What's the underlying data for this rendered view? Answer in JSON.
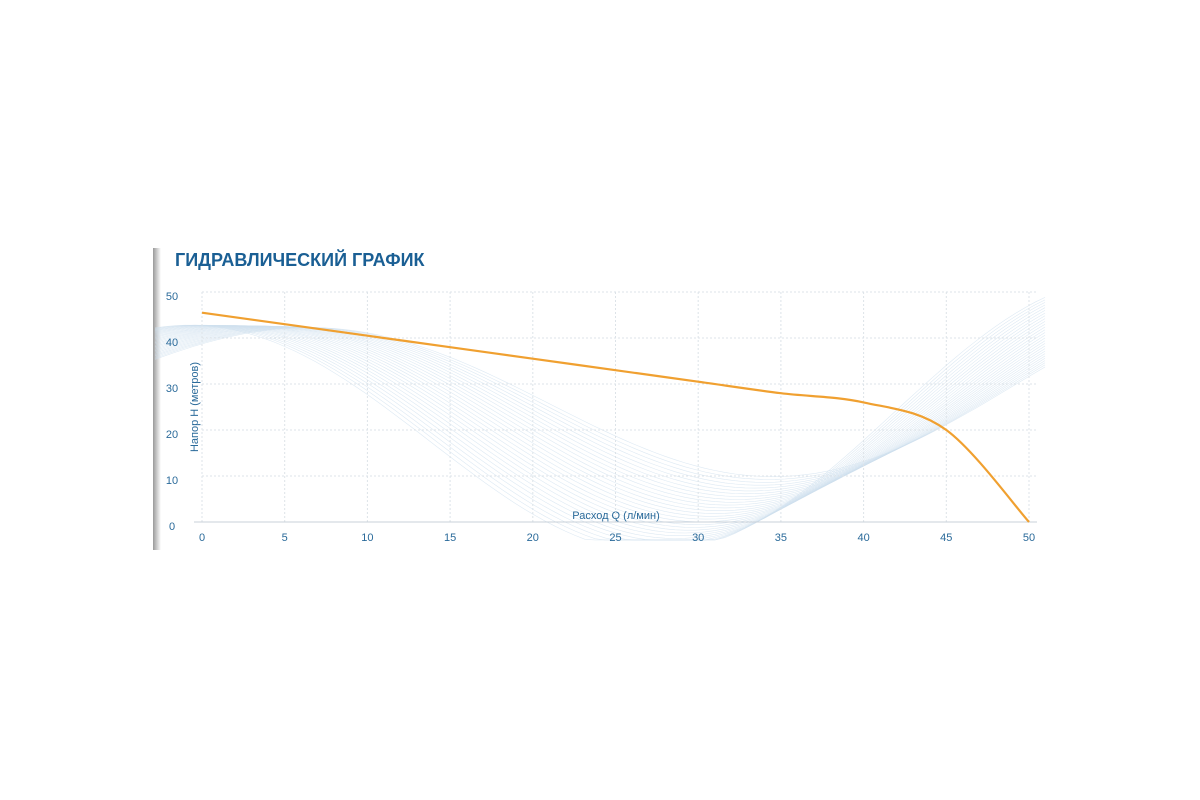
{
  "chart_data": {
    "type": "line",
    "title": "ГИДРАВЛИЧЕСКИЙ ГРАФИК",
    "x_label": "Расход Q (л/мин)",
    "y_label": "Напор H (метров)",
    "x": [
      0,
      5,
      10,
      15,
      20,
      25,
      30,
      35,
      40,
      45,
      50
    ],
    "series": [
      {
        "name": "Напор",
        "color": "#f0a030",
        "values": [
          45.5,
          43,
          40.5,
          38,
          35.5,
          33,
          30.5,
          28,
          26,
          20,
          0
        ]
      }
    ],
    "xlim": [
      0,
      50
    ],
    "xticks": [
      0,
      5,
      10,
      15,
      20,
      25,
      30,
      35,
      40,
      45,
      50
    ],
    "ylim": [
      0,
      50
    ],
    "yticks": [
      0,
      10,
      20,
      30,
      40,
      50
    ],
    "grid": true
  }
}
